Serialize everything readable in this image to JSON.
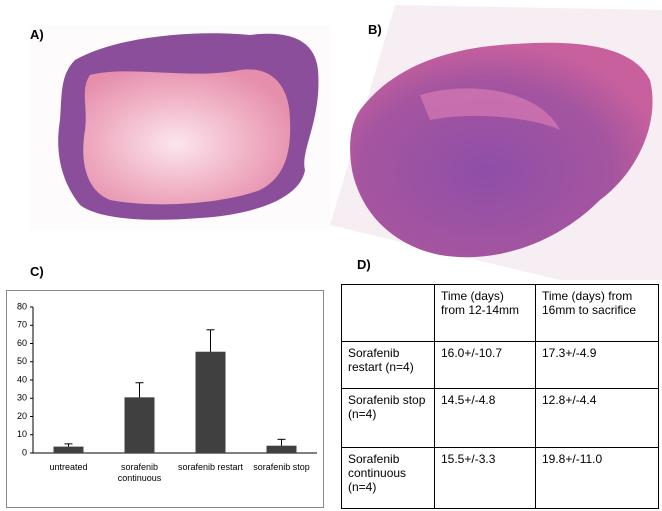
{
  "panels": {
    "a": "A)",
    "b": "B)",
    "c": "C)",
    "d": "D)"
  },
  "chart_data": {
    "type": "bar",
    "categories": [
      "untreated",
      "sorafenib continuous",
      "sorafenib restart",
      "sorafenib stop"
    ],
    "values": [
      3.5,
      30.5,
      55.5,
      4
    ],
    "errors": [
      1.5,
      8,
      12,
      3.5
    ],
    "color": "#404040",
    "ylim": [
      0,
      80
    ],
    "yticks": [
      0,
      10,
      20,
      30,
      40,
      50,
      60,
      70,
      80
    ],
    "grid": false
  },
  "table": {
    "rows": [
      [
        null,
        "Time (days) from 12-14mm",
        "Time (days) from 16mm to sacrifice"
      ],
      [
        "Sorafenib restart (n=4)",
        "16.0+/-10.7",
        "17.3+/-4.9"
      ],
      [
        "Sorafenib stop (n=4)",
        "14.5+/-4.8",
        "12.8+/-4.4"
      ],
      [
        "Sorafenib continuous (n=4)",
        "15.5+/-3.3",
        "19.8+/-11.0"
      ]
    ]
  }
}
